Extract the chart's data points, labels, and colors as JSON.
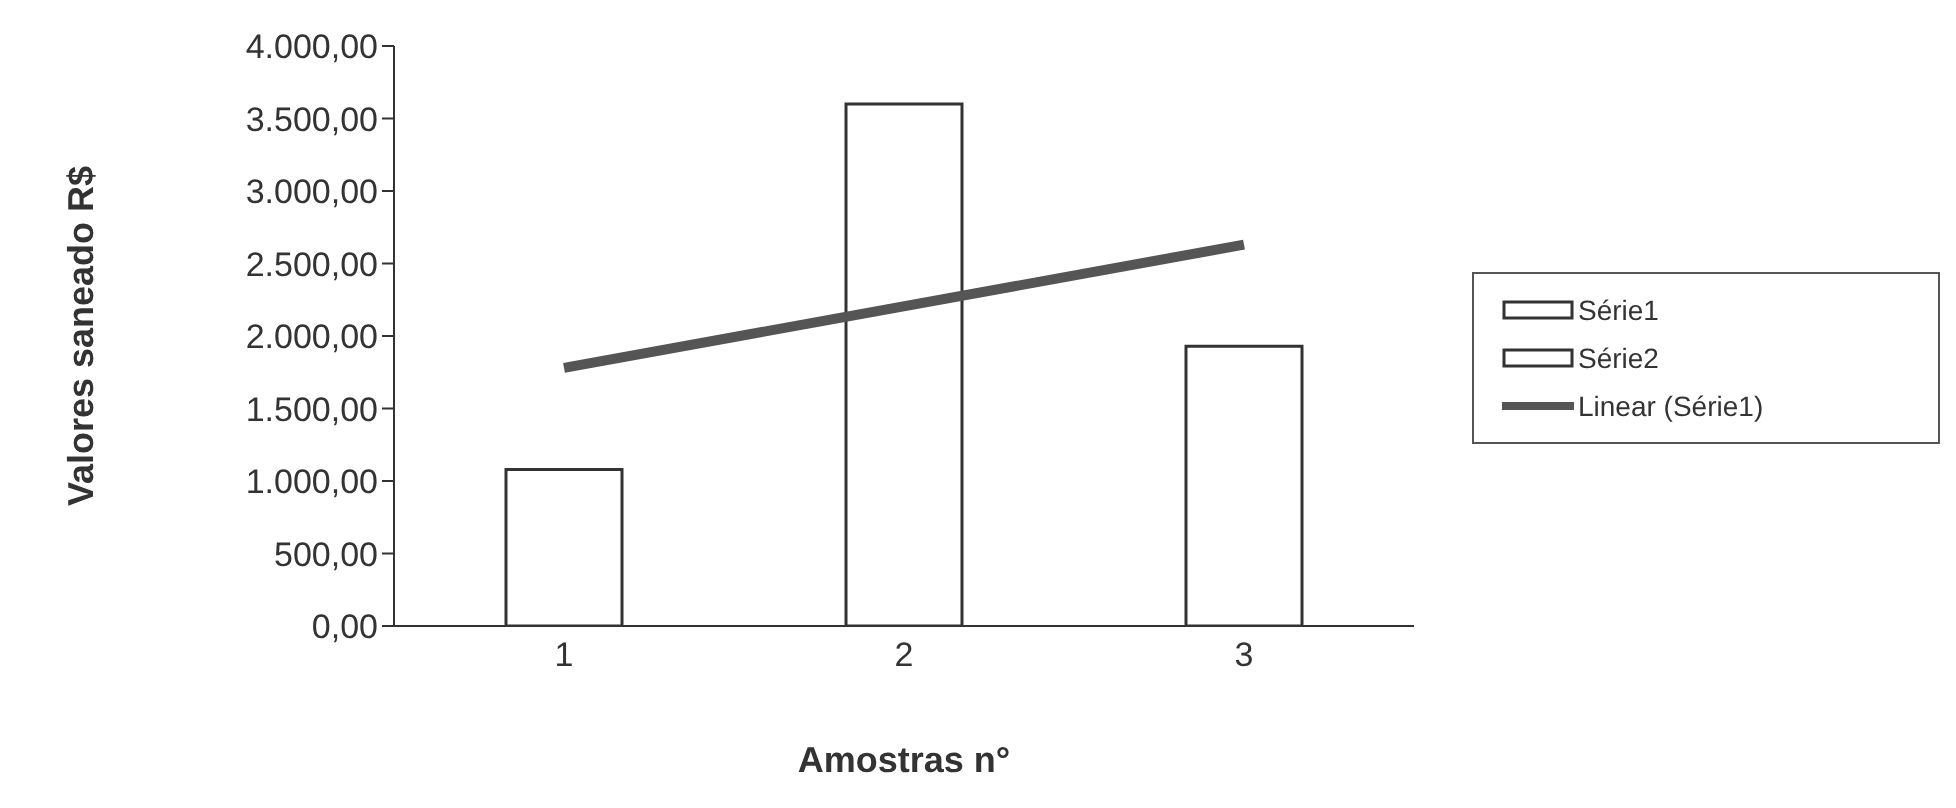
{
  "chart_data": {
    "type": "bar",
    "xlabel": "Amostras n°",
    "ylabel": "Valores saneado R$",
    "categories": [
      "1",
      "2",
      "3"
    ],
    "series": [
      {
        "name": "Série1",
        "color": "#ffffff",
        "values": [
          1080,
          3600,
          1930
        ]
      },
      {
        "name": "Série2",
        "color": "#ffffff",
        "values": [
          null,
          null,
          null
        ]
      },
      {
        "name": "Linear (Série1)",
        "type": "line",
        "color": "#555555",
        "values": [
          1780,
          null,
          2630
        ]
      }
    ],
    "ylim": [
      0,
      4000
    ],
    "yticks": [
      {
        "value": 0,
        "label": "0,00"
      },
      {
        "value": 500,
        "label": "500,00"
      },
      {
        "value": 1000,
        "label": "1.000,00"
      },
      {
        "value": 1500,
        "label": "1.500,00"
      },
      {
        "value": 2000,
        "label": "2.000,00"
      },
      {
        "value": 2500,
        "label": "2.500,00"
      },
      {
        "value": 3000,
        "label": "3.000,00"
      },
      {
        "value": 3500,
        "label": "3.500,00"
      },
      {
        "value": 4000,
        "label": "4.000,00"
      }
    ],
    "grid": false,
    "legend": "right"
  }
}
